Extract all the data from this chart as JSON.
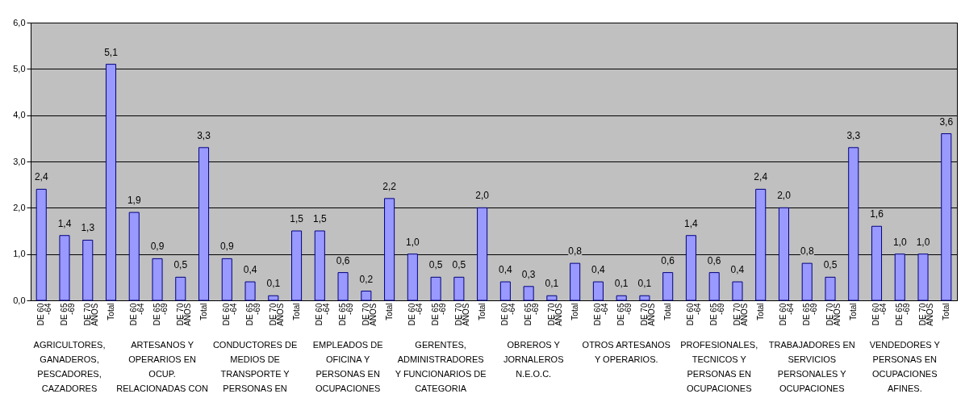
{
  "chart_data": {
    "type": "bar",
    "categories": [
      "DE 60\n-64",
      "DE 65\n-69",
      "DE 70\nAÑOS",
      "Total",
      "DE 60\n-64",
      "DE 65\n-69",
      "DE 70\nAÑOS",
      "Total",
      "DE 60\n-64",
      "DE 65\n-69",
      "DE 70\nAÑOS",
      "Total",
      "DE 60\n-64",
      "DE 65\n-69",
      "DE 70\nAÑOS",
      "Total",
      "DE 60\n-64",
      "DE 65\n-69",
      "DE 70\nAÑOS",
      "Total",
      "DE 60\n-64",
      "DE 65\n-69",
      "DE 70\nAÑOS",
      "Total",
      "DE 60\n-64",
      "DE 65\n-69",
      "DE 70\nAÑOS",
      "Total",
      "DE 60\n-64",
      "DE 65\n-69",
      "DE 70\nAÑOS",
      "Total",
      "DE 60\n-64",
      "DE 65\n-69",
      "DE 70\nAÑOS",
      "Total",
      "DE 60\n-64",
      "DE 65\n-69",
      "DE 70\nAÑOS",
      "Total"
    ],
    "values": [
      2.4,
      1.4,
      1.3,
      5.1,
      1.9,
      0.9,
      0.5,
      3.3,
      0.9,
      0.4,
      0.1,
      1.5,
      1.5,
      0.6,
      0.2,
      2.2,
      1.0,
      0.5,
      0.5,
      2.0,
      0.4,
      0.3,
      0.1,
      0.8,
      0.4,
      0.1,
      0.1,
      0.6,
      1.4,
      0.6,
      0.4,
      2.4,
      2.0,
      0.8,
      0.5,
      3.3,
      1.6,
      1.0,
      1.0,
      3.6
    ],
    "value_labels": [
      "2,4",
      "1,4",
      "1,3",
      "5,1",
      "1,9",
      "0,9",
      "0,5",
      "3,3",
      "0,9",
      "0,4",
      "0,1",
      "1,5",
      "1,5",
      "0,6",
      "0,2",
      "2,2",
      "1,0",
      "0,5",
      "0,5",
      "2,0",
      "0,4",
      "0,3",
      "0,1",
      "0,8",
      "0,4",
      "0,1",
      "0,1",
      "0,6",
      "1,4",
      "0,6",
      "0,4",
      "2,4",
      "2,0",
      "0,8",
      "0,5",
      "3,3",
      "1,6",
      "1,0",
      "1,0",
      "3,6"
    ],
    "color": "#9999ff",
    "ylim": [
      0,
      6
    ],
    "yticks": [
      {
        "value": 0,
        "label": "0,0"
      },
      {
        "value": 1,
        "label": "1,0"
      },
      {
        "value": 2,
        "label": "2,0"
      },
      {
        "value": 3,
        "label": "3,0"
      },
      {
        "value": 4,
        "label": "4,0"
      },
      {
        "value": 5,
        "label": "5,0"
      },
      {
        "value": 6,
        "label": "6,0"
      }
    ],
    "grid": "y",
    "annotations": [
      "AGRICULTORES,\nGANADEROS,\nPESCADORES,\nCAZADORES",
      "ARTESANOS Y\nOPERARIOS EN\nOCUP.\nRELACIONADAS CON",
      "CONDUCTORES DE\nMEDIOS DE\nTRANSPORTE Y\nPERSONAS EN",
      "EMPLEADOS DE\nOFICINA Y\nPERSONAS EN\nOCUPACIONES",
      "GERENTES,\nADMINISTRADORES\nY FUNCIONARIOS DE\nCATEGORIA",
      "OBREROS Y\nJORNALEROS\nN.E.O.C.",
      "OTROS ARTESANOS\nY OPERARIOS.",
      "PROFESIONALES,\nTECNICOS Y\nPERSONAS EN\nOCUPACIONES",
      "TRABAJADORES EN\nSERVICIOS\nPERSONALES Y\nOCUPACIONES",
      "VENDEDORES Y\nPERSONAS EN\nOCUPACIONES\nAFINES."
    ]
  }
}
